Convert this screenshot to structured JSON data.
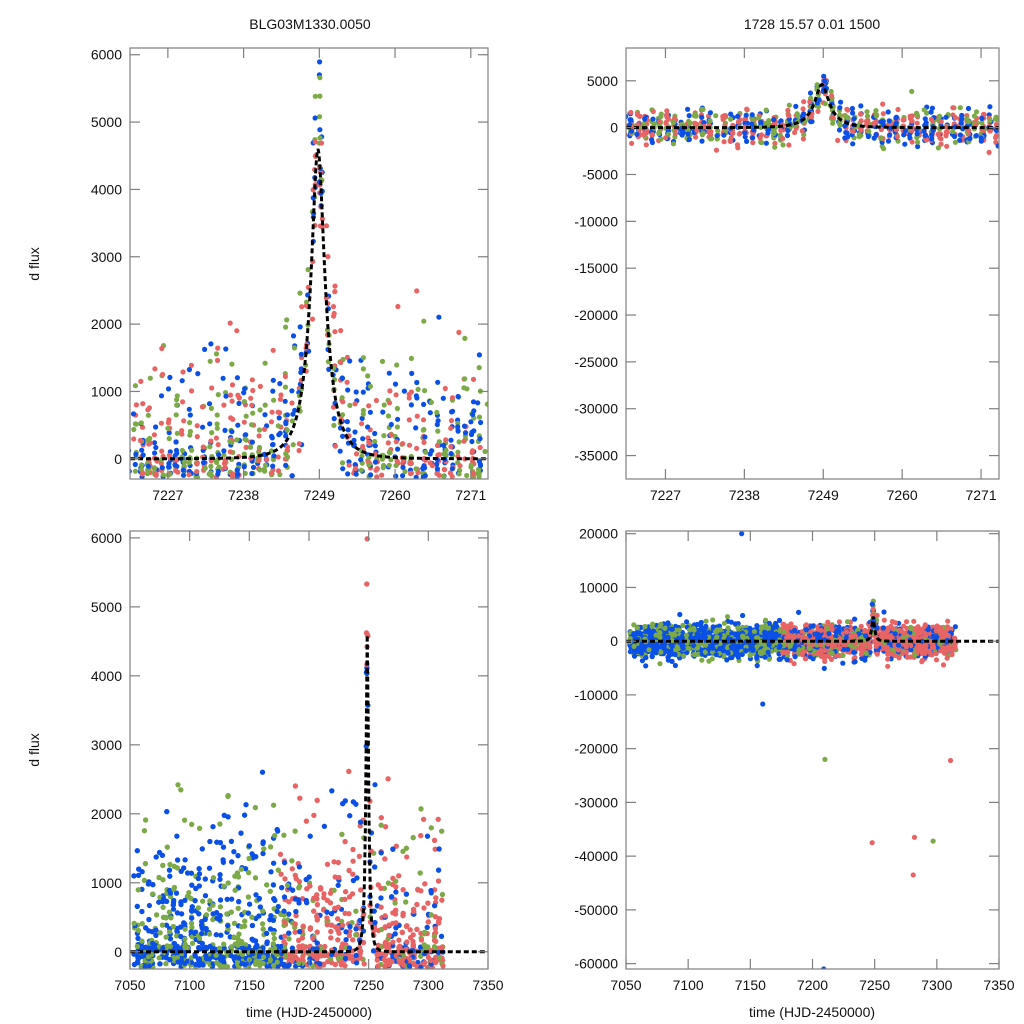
{
  "figure": {
    "title_left": "BLG03M1330.0050",
    "title_right": "1728  15.57  0.01  1500",
    "ylabel": "d flux",
    "xlabel": "time (HJD-2450000)"
  },
  "colors": {
    "blue": "#0a50e6",
    "red": "#e86464",
    "green": "#7caa46",
    "model": "#000000",
    "frame": "#7f7f7f"
  },
  "chart_data": [
    {
      "id": "top-left",
      "type": "scatter",
      "title": "BLG03M1330.0050",
      "xlabel": "",
      "ylabel": "d flux",
      "xlim": [
        7221.5,
        7273.5
      ],
      "ylim": [
        -300,
        6100
      ],
      "xticks": [
        7227,
        7238,
        7249,
        7260,
        7271
      ],
      "yticks": [
        0,
        1000,
        2000,
        3000,
        4000,
        5000,
        6000
      ],
      "model": {
        "type": "microlensing-peak",
        "t0": 7248.8,
        "peak": 4600,
        "tE": 3.2,
        "style": "black dashed"
      },
      "series": [
        {
          "name": "blue",
          "color": "blue"
        },
        {
          "name": "red",
          "color": "red"
        },
        {
          "name": "green",
          "color": "green"
        }
      ]
    },
    {
      "id": "top-right",
      "type": "scatter",
      "title": "1728  15.57  0.01  1500",
      "xlabel": "",
      "ylabel": "",
      "xlim": [
        7221.5,
        7273.5
      ],
      "ylim": [
        -37500,
        8500
      ],
      "xticks": [
        7227,
        7238,
        7249,
        7260,
        7271
      ],
      "yticks": [
        -35000,
        -30000,
        -25000,
        -20000,
        -15000,
        -10000,
        -5000,
        0,
        5000
      ],
      "model": {
        "type": "microlensing-peak",
        "t0": 7248.8,
        "peak": 4600,
        "tE": 3.2,
        "style": "black dashed"
      },
      "series": [
        {
          "name": "blue",
          "color": "blue"
        },
        {
          "name": "red",
          "color": "red"
        },
        {
          "name": "green",
          "color": "green"
        }
      ]
    },
    {
      "id": "bottom-left",
      "type": "scatter",
      "title": "",
      "xlabel": "time (HJD-2450000)",
      "ylabel": "d flux",
      "xlim": [
        7050,
        7350
      ],
      "ylim": [
        -250,
        6100
      ],
      "xticks": [
        7050,
        7100,
        7150,
        7200,
        7250,
        7300,
        7350
      ],
      "yticks": [
        0,
        1000,
        2000,
        3000,
        4000,
        5000,
        6000
      ],
      "data_range_x": [
        7055,
        7315
      ],
      "model": {
        "type": "microlensing-peak",
        "t0": 7248.8,
        "peak": 4600,
        "tE": 3.2,
        "style": "black dashed"
      },
      "series": [
        {
          "name": "blue",
          "color": "blue"
        },
        {
          "name": "red",
          "color": "red"
        },
        {
          "name": "green",
          "color": "green"
        }
      ]
    },
    {
      "id": "bottom-right",
      "type": "scatter",
      "title": "",
      "xlabel": "time (HJD-2450000)",
      "ylabel": "",
      "xlim": [
        7050,
        7350
      ],
      "ylim": [
        -61000,
        20500
      ],
      "xticks": [
        7050,
        7100,
        7150,
        7200,
        7250,
        7300,
        7350
      ],
      "yticks": [
        -60000,
        -50000,
        -40000,
        -30000,
        -20000,
        -10000,
        0,
        10000,
        20000
      ],
      "data_range_x": [
        7055,
        7315
      ],
      "outliers": [
        {
          "x": 7143,
          "y": 20000,
          "color": "blue"
        },
        {
          "x": 7160,
          "y": -11700,
          "color": "blue"
        },
        {
          "x": 7210,
          "y": -22000,
          "color": "green"
        },
        {
          "x": 7209,
          "y": -61000,
          "color": "blue"
        },
        {
          "x": 7248,
          "y": -37500,
          "color": "red"
        },
        {
          "x": 7282,
          "y": -36500,
          "color": "red"
        },
        {
          "x": 7281,
          "y": -43500,
          "color": "red"
        },
        {
          "x": 7297,
          "y": -37200,
          "color": "green"
        },
        {
          "x": 7311,
          "y": -22200,
          "color": "red"
        }
      ],
      "model": {
        "type": "microlensing-peak",
        "t0": 7248.8,
        "peak": 4600,
        "tE": 3.2,
        "style": "black dashed"
      },
      "series": [
        {
          "name": "blue",
          "color": "blue"
        },
        {
          "name": "red",
          "color": "red"
        },
        {
          "name": "green",
          "color": "green"
        }
      ]
    }
  ]
}
